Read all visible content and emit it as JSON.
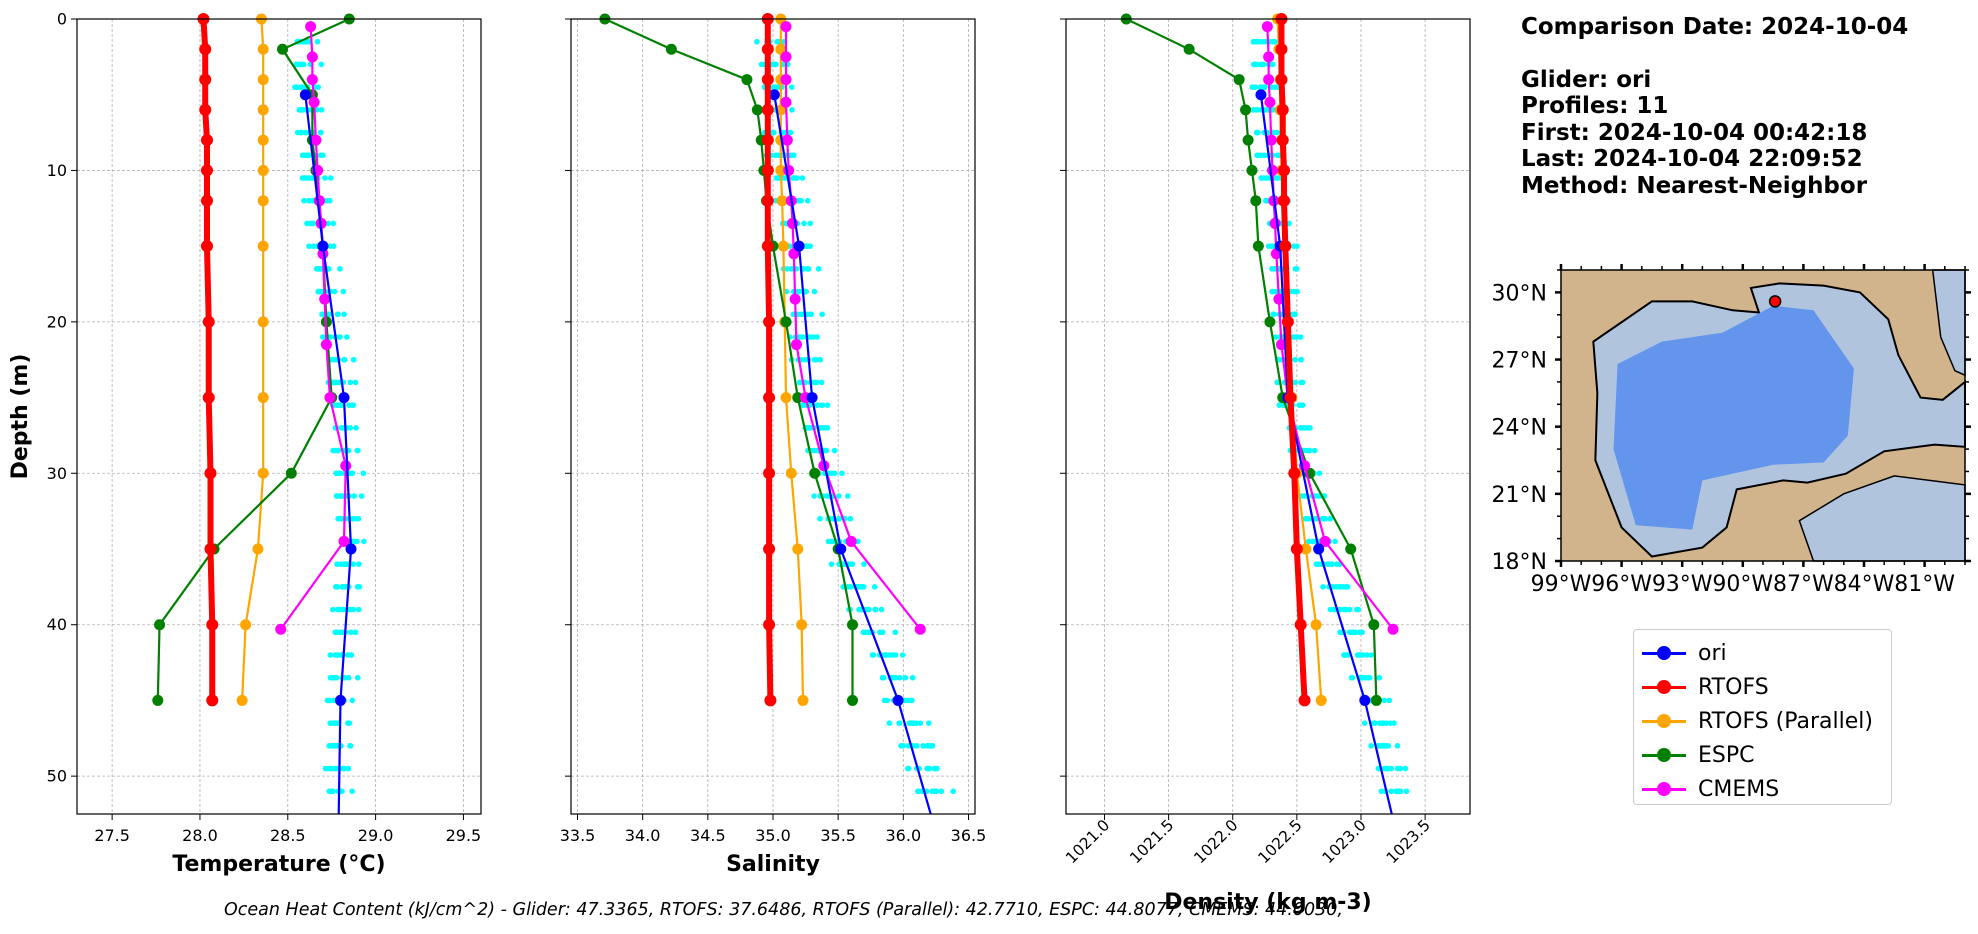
{
  "info": {
    "comparison_date": "Comparison Date: 2024-10-04",
    "glider": "Glider: ori",
    "profiles": "Profiles: 11",
    "first": "First: 2024-10-04 00:42:18",
    "last": "Last: 2024-10-04 22:09:52",
    "method": "Method: Nearest-Neighbor"
  },
  "legend": [
    {
      "label": "ori",
      "color": "#0000ff"
    },
    {
      "label": "RTOFS",
      "color": "#ff0000"
    },
    {
      "label": "RTOFS (Parallel)",
      "color": "#ffa500"
    },
    {
      "label": "ESPC",
      "color": "#008000"
    },
    {
      "label": "CMEMS",
      "color": "#ff00ff"
    }
  ],
  "footer": "Ocean Heat Content (kJ/cm^2) - Glider: 47.3365,  RTOFS: 37.6486,  RTOFS (Parallel): 42.7710,  ESPC: 44.8077,  CMEMS: 44.0030,",
  "map": {
    "lat_labels": [
      "30°N",
      "27°N",
      "24°N",
      "21°N",
      "18°N"
    ],
    "lon_labels": [
      "99°W",
      "96°W",
      "93°W",
      "90°W",
      "87°W",
      "84°W",
      "81°W"
    ],
    "glider_marker_color": "#ff0000",
    "land_color": "#d2b48c",
    "deep_water_color": "#6495ed",
    "shelf_color": "#b0c4de"
  },
  "chart_data": [
    {
      "type": "line",
      "xlabel": "Temperature (°C)",
      "ylabel": "Depth (m)",
      "xlim": [
        27.3,
        29.6
      ],
      "ylim": [
        52.5,
        0
      ],
      "xticks": [
        27.5,
        28.0,
        28.5,
        29.0,
        29.5
      ],
      "xtick_labels": [
        "27.5",
        "28.0",
        "28.5",
        "29.0",
        "29.5"
      ],
      "yticks": [
        0,
        10,
        20,
        30,
        40,
        50
      ],
      "ytick_labels": [
        "0",
        "10",
        "20",
        "30",
        "40",
        "50"
      ],
      "grid": true,
      "series": [
        {
          "name": "ori",
          "color": "#0000ff",
          "depth": [
            5,
            15,
            25,
            35,
            45,
            52.5
          ],
          "values": [
            28.6,
            28.7,
            28.82,
            28.86,
            28.8,
            28.79
          ]
        },
        {
          "name": "RTOFS",
          "color": "#ff0000",
          "depth": [
            0,
            2,
            4,
            6,
            8,
            10,
            12,
            15,
            20,
            25,
            30,
            35,
            40,
            45
          ],
          "values": [
            28.02,
            28.03,
            28.03,
            28.03,
            28.04,
            28.04,
            28.04,
            28.04,
            28.05,
            28.05,
            28.06,
            28.06,
            28.07,
            28.07
          ]
        },
        {
          "name": "RTOFS (Parallel)",
          "color": "#ffa500",
          "depth": [
            0,
            2,
            4,
            6,
            8,
            10,
            12,
            15,
            20,
            25,
            30,
            35,
            40,
            45
          ],
          "values": [
            28.35,
            28.36,
            28.36,
            28.36,
            28.36,
            28.36,
            28.36,
            28.36,
            28.36,
            28.36,
            28.36,
            28.33,
            28.26,
            28.24
          ]
        },
        {
          "name": "ESPC",
          "color": "#008000",
          "depth": [
            0,
            2,
            5,
            8,
            10,
            12,
            15,
            20,
            25,
            30,
            35,
            40,
            45
          ],
          "values": [
            28.85,
            28.47,
            28.64,
            28.64,
            28.66,
            28.68,
            28.7,
            28.72,
            28.75,
            28.52,
            28.08,
            27.77,
            27.76
          ]
        },
        {
          "name": "CMEMS",
          "color": "#ff00ff",
          "depth": [
            0.5,
            2.5,
            4,
            5.5,
            8,
            10,
            12,
            13.5,
            15.5,
            18.5,
            21.5,
            25,
            29.5,
            34.5,
            40.3
          ],
          "values": [
            28.63,
            28.64,
            28.64,
            28.65,
            28.66,
            28.67,
            28.68,
            28.69,
            28.7,
            28.71,
            28.72,
            28.74,
            28.83,
            28.82,
            28.46
          ]
        }
      ]
    },
    {
      "type": "line",
      "xlabel": "Salinity",
      "ylabel": "",
      "xlim": [
        33.45,
        36.55
      ],
      "ylim": [
        52.5,
        0
      ],
      "xticks": [
        33.5,
        34.0,
        34.5,
        35.0,
        35.5,
        36.0,
        36.5
      ],
      "xtick_labels": [
        "33.5",
        "34.0",
        "34.5",
        "35.0",
        "35.5",
        "36.0",
        "36.5"
      ],
      "grid": true,
      "series": [
        {
          "name": "ori",
          "color": "#0000ff",
          "depth": [
            5,
            15,
            25,
            35,
            45,
            52.5
          ],
          "values": [
            35.01,
            35.2,
            35.3,
            35.52,
            35.96,
            36.21
          ]
        },
        {
          "name": "RTOFS",
          "color": "#ff0000",
          "depth": [
            0,
            2,
            4,
            6,
            8,
            10,
            12,
            15,
            20,
            25,
            30,
            35,
            40,
            45
          ],
          "values": [
            34.96,
            34.96,
            34.96,
            34.96,
            34.96,
            34.96,
            34.96,
            34.96,
            34.97,
            34.97,
            34.97,
            34.97,
            34.97,
            34.98
          ]
        },
        {
          "name": "RTOFS (Parallel)",
          "color": "#ffa500",
          "depth": [
            0,
            2,
            4,
            6,
            8,
            10,
            12,
            15,
            20,
            25,
            30,
            35,
            40,
            45
          ],
          "values": [
            35.06,
            35.06,
            35.06,
            35.06,
            35.06,
            35.06,
            35.07,
            35.08,
            35.09,
            35.1,
            35.14,
            35.19,
            35.22,
            35.23
          ]
        },
        {
          "name": "ESPC",
          "color": "#008000",
          "depth": [
            0,
            2,
            4,
            6,
            8,
            10,
            12,
            15,
            20,
            25,
            30,
            35,
            40,
            45
          ],
          "values": [
            33.71,
            34.22,
            34.8,
            34.88,
            34.91,
            34.93,
            34.95,
            35.0,
            35.1,
            35.19,
            35.32,
            35.5,
            35.61,
            35.61
          ]
        },
        {
          "name": "CMEMS",
          "color": "#ff00ff",
          "depth": [
            0.5,
            2.5,
            4,
            5.5,
            8,
            10,
            12,
            13.5,
            15.5,
            18.5,
            21.5,
            25,
            29.5,
            34.5,
            40.3
          ],
          "values": [
            35.1,
            35.1,
            35.1,
            35.1,
            35.11,
            35.12,
            35.14,
            35.15,
            35.16,
            35.17,
            35.18,
            35.25,
            35.39,
            35.6,
            36.13
          ]
        }
      ]
    },
    {
      "type": "line",
      "xlabel": "Density (kg m-3)",
      "ylabel": "",
      "xlim": [
        1020.7,
        1023.85
      ],
      "ylim": [
        52.5,
        0
      ],
      "xticks": [
        1021.0,
        1021.5,
        1022.0,
        1022.5,
        1023.0,
        1023.5
      ],
      "xtick_labels": [
        "1021.0",
        "1021.5",
        "1022.0",
        "1022.5",
        "1023.0",
        "1023.5"
      ],
      "grid": true,
      "series": [
        {
          "name": "ori",
          "color": "#0000ff",
          "depth": [
            5,
            15,
            25,
            35,
            45,
            52.5
          ],
          "values": [
            1022.22,
            1022.37,
            1022.43,
            1022.67,
            1023.03,
            1023.24
          ]
        },
        {
          "name": "RTOFS",
          "color": "#ff0000",
          "depth": [
            0,
            2,
            4,
            6,
            8,
            10,
            12,
            15,
            20,
            25,
            30,
            35,
            40,
            45
          ],
          "values": [
            1022.38,
            1022.38,
            1022.38,
            1022.39,
            1022.39,
            1022.4,
            1022.4,
            1022.41,
            1022.43,
            1022.45,
            1022.48,
            1022.5,
            1022.53,
            1022.56
          ]
        },
        {
          "name": "RTOFS (Parallel)",
          "color": "#ffa500",
          "depth": [
            0,
            2,
            4,
            6,
            8,
            10,
            12,
            15,
            20,
            25,
            30,
            35,
            40,
            45
          ],
          "values": [
            1022.35,
            1022.36,
            1022.37,
            1022.37,
            1022.38,
            1022.38,
            1022.39,
            1022.4,
            1022.43,
            1022.46,
            1022.5,
            1022.57,
            1022.65,
            1022.69
          ]
        },
        {
          "name": "ESPC",
          "color": "#008000",
          "depth": [
            0,
            2,
            4,
            6,
            8,
            10,
            12,
            15,
            20,
            25,
            30,
            35,
            40,
            45
          ],
          "values": [
            1021.17,
            1021.66,
            1022.05,
            1022.1,
            1022.12,
            1022.15,
            1022.18,
            1022.2,
            1022.29,
            1022.39,
            1022.6,
            1022.92,
            1023.1,
            1023.12
          ]
        },
        {
          "name": "CMEMS",
          "color": "#ff00ff",
          "depth": [
            0.5,
            2.5,
            4,
            5.5,
            8,
            10,
            12,
            13.5,
            15.5,
            18.5,
            21.5,
            25,
            29.5,
            34.5,
            40.3
          ],
          "values": [
            1022.27,
            1022.28,
            1022.28,
            1022.29,
            1022.3,
            1022.31,
            1022.32,
            1022.33,
            1022.34,
            1022.36,
            1022.38,
            1022.43,
            1022.56,
            1022.72,
            1023.25
          ]
        }
      ]
    }
  ],
  "glider_profiles_color": "#00ffff"
}
